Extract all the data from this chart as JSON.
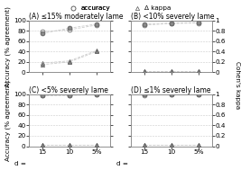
{
  "subplots": [
    {
      "label": "(A) ≤15% moderately lame",
      "accuracy_filled": [
        75,
        85,
        93
      ],
      "accuracy_open": [
        78,
        82,
        91
      ],
      "kappa_filled": [
        0.15,
        0.2,
        0.4
      ],
      "kappa_open": [
        0.18,
        0.22,
        0.42
      ]
    },
    {
      "label": "(B) <10% severely lame",
      "accuracy_filled": [
        93,
        95,
        96
      ],
      "accuracy_open": [
        91,
        94,
        95
      ],
      "kappa_filled": [
        0.02,
        0.02,
        0.02
      ],
      "kappa_open": [
        0.03,
        0.03,
        0.03
      ]
    },
    {
      "label": "(C) <5% severely lame",
      "accuracy_filled": [
        98,
        98,
        99
      ],
      "accuracy_open": [
        97,
        98,
        99
      ],
      "kappa_filled": [
        0.02,
        0.02,
        0.02
      ],
      "kappa_open": [
        0.03,
        0.03,
        0.03
      ]
    },
    {
      "label": "(D) ≤1% severely lame",
      "accuracy_filled": [
        99,
        99,
        99
      ],
      "accuracy_open": [
        98,
        99,
        99
      ],
      "kappa_filled": [
        0.02,
        0.02,
        0.02
      ],
      "kappa_open": [
        0.03,
        0.03,
        0.03
      ]
    }
  ],
  "x_positions": [
    1,
    2,
    3
  ],
  "x_tick_labels": [
    "15",
    "10",
    "5%"
  ],
  "x_label_bottom": "d = ",
  "ylim_left": [
    0,
    100
  ],
  "ylim_right": [
    0,
    1
  ],
  "yticks_left": [
    0,
    20,
    40,
    60,
    80,
    100
  ],
  "yticks_right": [
    0,
    0.2,
    0.4,
    0.6,
    0.8,
    1.0
  ],
  "ytick_right_labels": [
    "0",
    "0.2",
    "0.4",
    "0.6",
    "0.8",
    "1"
  ],
  "ylabel_left": "Accuracy (% agreement)",
  "ylabel_right": "Cohen's kappa",
  "color_filled": "#888888",
  "color_open": "#ffffff",
  "edge_color": "#555555",
  "legend_accuracy_label": "accuracy",
  "legend_kappa_label": "Δ kappa",
  "background_color": "#ffffff",
  "grid_color": "#cccccc",
  "fontsize": 5.2,
  "title_fontsize": 5.5,
  "marker_size_circle": 3.5,
  "marker_size_triangle": 3.0,
  "line_width": 0.6
}
